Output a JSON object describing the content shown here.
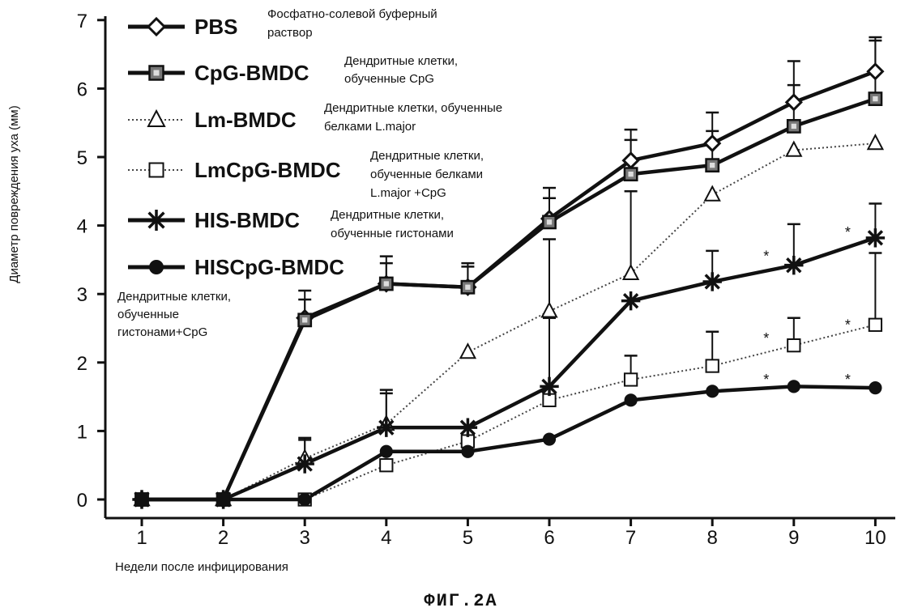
{
  "figure_caption": "ФИГ.2A",
  "chart_data": {
    "type": "line",
    "ylabel": "Диаметр повреждения уха (мм)",
    "xlabel": "Недели после инфицирования",
    "categories": [
      "1",
      "2",
      "3",
      "4",
      "5",
      "6",
      "7",
      "8",
      "9",
      "10"
    ],
    "x": [
      1,
      2,
      3,
      4,
      5,
      6,
      7,
      8,
      9,
      10
    ],
    "ylim": [
      0,
      7
    ],
    "yticks": [
      "0",
      "1",
      "2",
      "3",
      "4",
      "5",
      "6",
      "7"
    ],
    "grid": false,
    "legend_position": "top-left",
    "series": [
      {
        "name": "PBS",
        "description": [
          "Фосфатно-солевой буферный",
          "раствор"
        ],
        "marker": "diamond",
        "style": "solid",
        "color": "#111111",
        "values": [
          0,
          0,
          2.65,
          3.15,
          3.1,
          4.1,
          4.95,
          5.2,
          5.8,
          6.25
        ],
        "errors": [
          0,
          0,
          0.4,
          0.4,
          0.35,
          0.45,
          0.45,
          0.45,
          0.6,
          0.5
        ]
      },
      {
        "name": "CpG-BMDC",
        "description": [
          "Дендритные клетки,",
          "обученные CpG"
        ],
        "marker": "square-dot",
        "style": "solid",
        "color": "#111111",
        "values": [
          0,
          0,
          2.62,
          3.15,
          3.1,
          4.05,
          4.75,
          4.88,
          5.45,
          5.85
        ],
        "errors": [
          0,
          0,
          0.3,
          0.3,
          0.3,
          0.35,
          0.5,
          0.5,
          0.6,
          0.85
        ]
      },
      {
        "name": "Lm-BMDC",
        "description": [
          "Дендритные клетки, обученные",
          "белками L.major"
        ],
        "marker": "triangle",
        "style": "dotted",
        "color": "#444444",
        "values": [
          0,
          0,
          0.6,
          1.1,
          2.15,
          2.75,
          3.3,
          4.45,
          5.1,
          5.2
        ],
        "errors": [
          0,
          0,
          0.3,
          0.45,
          0,
          1.05,
          1.2,
          0,
          0,
          0
        ]
      },
      {
        "name": "LmCpG-BMDC",
        "description": [
          "Дендритные клетки,",
          "обученные белками",
          "L.major +CpG"
        ],
        "marker": "open-square",
        "style": "dotted",
        "color": "#444444",
        "values": [
          0,
          0,
          0,
          0.5,
          0.85,
          1.45,
          1.75,
          1.95,
          2.25,
          2.55
        ],
        "errors": [
          0,
          0,
          0,
          0,
          0,
          0,
          0.35,
          0.5,
          0.4,
          1.05
        ]
      },
      {
        "name": "HIS-BMDC",
        "description": [
          "Дендритные клетки,",
          "обученные гистонами"
        ],
        "marker": "star",
        "style": "solid",
        "color": "#111111",
        "values": [
          0,
          0,
          0.52,
          1.05,
          1.05,
          1.65,
          2.9,
          3.18,
          3.42,
          3.82
        ],
        "errors": [
          0,
          0,
          0.35,
          0.55,
          0,
          1.0,
          0,
          0.45,
          0.6,
          0.5
        ]
      },
      {
        "name": "HISCpG-BMDC",
        "description": [
          "Дендритные клетки,",
          "обученные",
          "гистонами+CpG"
        ],
        "marker": "filled-circle",
        "style": "solid",
        "color": "#111111",
        "values": [
          0,
          0,
          0,
          0.7,
          0.7,
          0.88,
          1.45,
          1.58,
          1.65,
          1.63
        ],
        "errors": [
          0,
          0,
          0,
          0,
          0,
          0,
          0,
          0,
          0,
          0
        ]
      }
    ],
    "annotations": [
      {
        "text": "*",
        "x": 9,
        "y": 3.55
      },
      {
        "text": "*",
        "x": 10,
        "y": 3.9
      },
      {
        "text": "*",
        "x": 9,
        "y": 2.35
      },
      {
        "text": "*",
        "x": 10,
        "y": 2.55
      },
      {
        "text": "*",
        "x": 9,
        "y": 1.75
      },
      {
        "text": "*",
        "x": 10,
        "y": 1.75
      }
    ]
  }
}
